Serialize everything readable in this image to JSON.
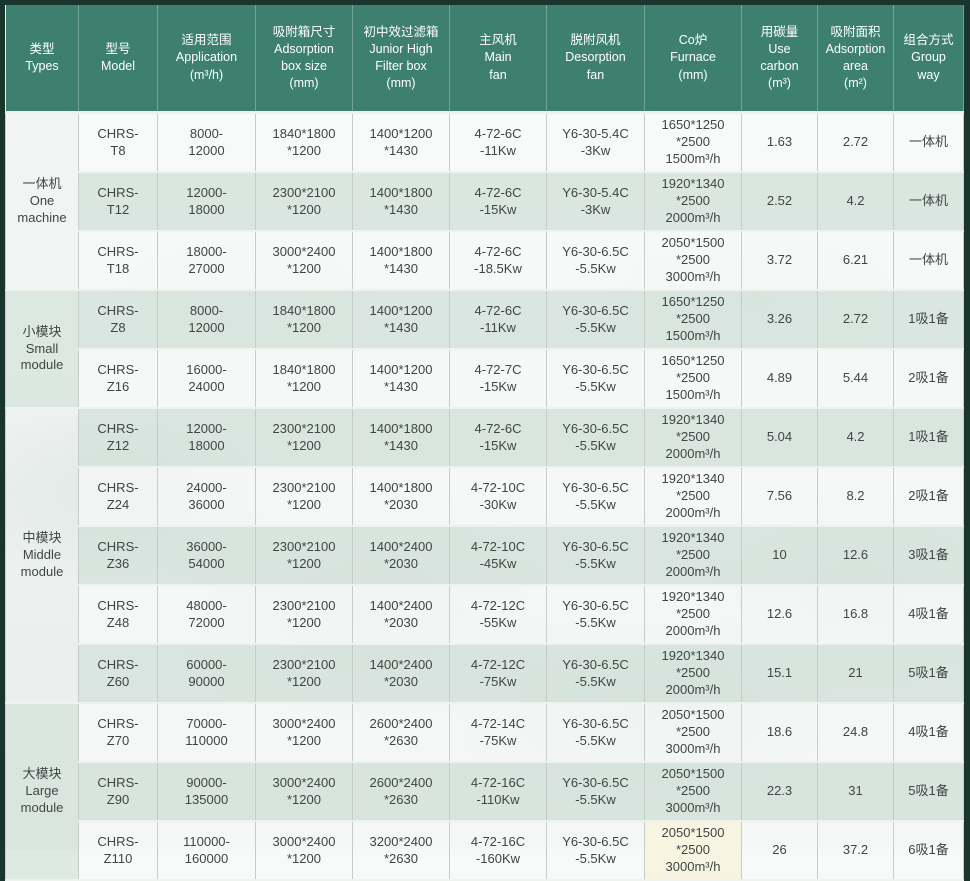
{
  "colors": {
    "header_bg": "#3d8070",
    "header_text": "#ffffff",
    "frame": "#1a352e",
    "row_plain": "#fbfdfc",
    "row_alt": "#d8e6e0",
    "cell_text": "#3f4643",
    "highlight_cell": "#f8f4e2"
  },
  "table": {
    "headers": [
      "类型\nTypes",
      "型号\nModel",
      "适用范围\nApplication\n(m³/h)",
      "吸附箱尺寸\nAdsorption\nbox size\n(mm)",
      "初中效过滤箱\nJunior High\nFilter box\n(mm)",
      "主风机\nMain\nfan",
      "脱附风机\nDesorption\nfan",
      "Co炉\nFurnace\n(mm)",
      "用碳量\nUse\ncarbon\n(m³)",
      "吸附面积\nAdsorption\narea\n(m²)",
      "组合方式\nGroup\nway"
    ],
    "header_keys": [
      "types",
      "model",
      "application",
      "adsorption-box-size",
      "filter-box",
      "main-fan",
      "desorption-fan",
      "furnace",
      "use-carbon",
      "adsorption-area",
      "group-way"
    ],
    "column_keys": [
      "model",
      "application",
      "box",
      "filter",
      "main_fan",
      "desorption_fan",
      "furnace",
      "carbon",
      "area",
      "group_way"
    ],
    "groups": [
      {
        "label": "一体机\nOne\nmachine",
        "rows": [
          {
            "model": "CHRS-\nT8",
            "application": "8000-\n12000",
            "box": "1840*1800\n*1200",
            "filter": "1400*1200\n*1430",
            "main_fan": "4-72-6C\n-11Kw",
            "desorption_fan": "Y6-30-5.4C\n-3Kw",
            "furnace": "1650*1250\n*2500\n1500m³/h",
            "carbon": "1.63",
            "area": "2.72",
            "group_way": "一体机"
          },
          {
            "model": "CHRS-\nT12",
            "application": "12000-\n18000",
            "box": "2300*2100\n*1200",
            "filter": "1400*1800\n*1430",
            "main_fan": "4-72-6C\n-15Kw",
            "desorption_fan": "Y6-30-5.4C\n-3Kw",
            "furnace": "1920*1340\n*2500\n2000m³/h",
            "carbon": "2.52",
            "area": "4.2",
            "group_way": "一体机"
          },
          {
            "model": "CHRS-\nT18",
            "application": "18000-\n27000",
            "box": "3000*2400\n*1200",
            "filter": "1400*1800\n*1430",
            "main_fan": "4-72-6C\n-18.5Kw",
            "desorption_fan": "Y6-30-6.5C\n-5.5Kw",
            "furnace": "2050*1500\n*2500\n3000m³/h",
            "carbon": "3.72",
            "area": "6.21",
            "group_way": "一体机"
          }
        ]
      },
      {
        "label": "小模块\nSmall\nmodule",
        "rows": [
          {
            "model": "CHRS-\nZ8",
            "application": "8000-\n12000",
            "box": "1840*1800\n*1200",
            "filter": "1400*1200\n*1430",
            "main_fan": "4-72-6C\n-11Kw",
            "desorption_fan": "Y6-30-6.5C\n-5.5Kw",
            "furnace": "1650*1250\n*2500\n1500m³/h",
            "carbon": "3.26",
            "area": "2.72",
            "group_way": "1吸1备"
          },
          {
            "model": "CHRS-\nZ16",
            "application": "16000-\n24000",
            "box": "1840*1800\n*1200",
            "filter": "1400*1200\n*1430",
            "main_fan": "4-72-7C\n-15Kw",
            "desorption_fan": "Y6-30-6.5C\n-5.5Kw",
            "furnace": "1650*1250\n*2500\n1500m³/h",
            "carbon": "4.89",
            "area": "5.44",
            "group_way": "2吸1备"
          }
        ]
      },
      {
        "label": "中模块\nMiddle\nmodule",
        "rows": [
          {
            "model": "CHRS-\nZ12",
            "application": "12000-\n18000",
            "box": "2300*2100\n*1200",
            "filter": "1400*1800\n*1430",
            "main_fan": "4-72-6C\n-15Kw",
            "desorption_fan": "Y6-30-6.5C\n-5.5Kw",
            "furnace": "1920*1340\n*2500\n2000m³/h",
            "carbon": "5.04",
            "area": "4.2",
            "group_way": "1吸1备"
          },
          {
            "model": "CHRS-\nZ24",
            "application": "24000-\n36000",
            "box": "2300*2100\n*1200",
            "filter": "1400*1800\n*2030",
            "main_fan": "4-72-10C\n-30Kw",
            "desorption_fan": "Y6-30-6.5C\n-5.5Kw",
            "furnace": "1920*1340\n*2500\n2000m³/h",
            "carbon": "7.56",
            "area": "8.2",
            "group_way": "2吸1备"
          },
          {
            "model": "CHRS-\nZ36",
            "application": "36000-\n54000",
            "box": "2300*2100\n*1200",
            "filter": "1400*2400\n*2030",
            "main_fan": "4-72-10C\n-45Kw",
            "desorption_fan": "Y6-30-6.5C\n-5.5Kw",
            "furnace": "1920*1340\n*2500\n2000m³/h",
            "carbon": "10",
            "area": "12.6",
            "group_way": "3吸1备"
          },
          {
            "model": "CHRS-\nZ48",
            "application": "48000-\n72000",
            "box": "2300*2100\n*1200",
            "filter": "1400*2400\n*2030",
            "main_fan": "4-72-12C\n-55Kw",
            "desorption_fan": "Y6-30-6.5C\n-5.5Kw",
            "furnace": "1920*1340\n*2500\n2000m³/h",
            "carbon": "12.6",
            "area": "16.8",
            "group_way": "4吸1备"
          },
          {
            "model": "CHRS-\nZ60",
            "application": "60000-\n90000",
            "box": "2300*2100\n*1200",
            "filter": "1400*2400\n*2030",
            "main_fan": "4-72-12C\n-75Kw",
            "desorption_fan": "Y6-30-6.5C\n-5.5Kw",
            "furnace": "1920*1340\n*2500\n2000m³/h",
            "carbon": "15.1",
            "area": "21",
            "group_way": "5吸1备"
          }
        ]
      },
      {
        "label": "大模块\nLarge\nmodule",
        "rows": [
          {
            "model": "CHRS-\nZ70",
            "application": "70000-\n110000",
            "box": "3000*2400\n*1200",
            "filter": "2600*2400\n*2630",
            "main_fan": "4-72-14C\n-75Kw",
            "desorption_fan": "Y6-30-6.5C\n-5.5Kw",
            "furnace": "2050*1500\n*2500\n3000m³/h",
            "carbon": "18.6",
            "area": "24.8",
            "group_way": "4吸1备"
          },
          {
            "model": "CHRS-\nZ90",
            "application": "90000-\n135000",
            "box": "3000*2400\n*1200",
            "filter": "2600*2400\n*2630",
            "main_fan": "4-72-16C\n-110Kw",
            "desorption_fan": "Y6-30-6.5C\n-5.5Kw",
            "furnace": "2050*1500\n*2500\n3000m³/h",
            "carbon": "22.3",
            "area": "31",
            "group_way": "5吸1备"
          },
          {
            "model": "CHRS-\nZ110",
            "application": "110000-\n160000",
            "box": "3000*2400\n*1200",
            "filter": "3200*2400\n*2630",
            "main_fan": "4-72-16C\n-160Kw",
            "desorption_fan": "Y6-30-6.5C\n-5.5Kw",
            "furnace": "2050*1500\n*2500\n3000m³/h",
            "carbon": "26",
            "area": "37.2",
            "group_way": "6吸1备",
            "furnace_bg": "#f8f4e2"
          }
        ]
      }
    ]
  }
}
